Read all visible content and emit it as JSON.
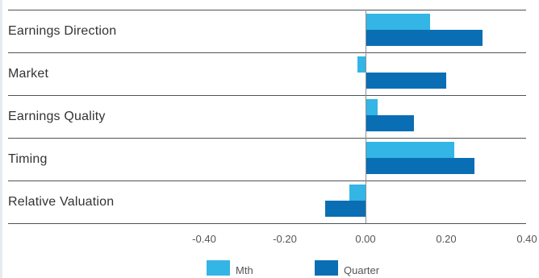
{
  "chart_data": {
    "type": "bar",
    "orientation": "horizontal",
    "categories": [
      "Earnings Direction",
      "Market",
      "Earnings Quality",
      "Timing",
      "Relative Valuation"
    ],
    "series": [
      {
        "name": "Mth",
        "values": [
          0.16,
          -0.02,
          0.03,
          0.22,
          -0.04
        ],
        "color": "#33b5e5"
      },
      {
        "name": "Quarter",
        "values": [
          0.29,
          0.2,
          0.12,
          0.27,
          -0.1
        ],
        "color": "#0a6eb4"
      }
    ],
    "xlim": [
      -0.4,
      0.4
    ],
    "xticks": [
      "-0.40",
      "-0.20",
      "0.00",
      "0.20",
      "0.40"
    ],
    "legend_position": "bottom"
  }
}
